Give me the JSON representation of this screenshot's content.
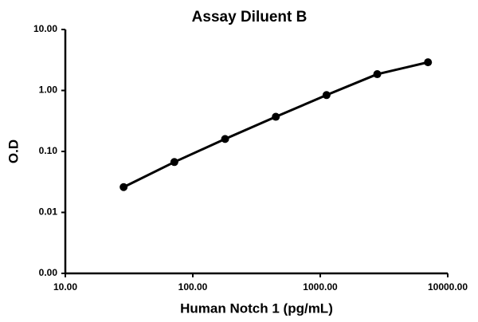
{
  "chart_data": {
    "type": "line",
    "title": "Assay Diluent B",
    "x_label": "Human Notch 1 (pg/mL)",
    "y_label": "O.D",
    "x": [
      28.67,
      71.68,
      179.2,
      448,
      1120,
      2800,
      7000
    ],
    "series": [
      {
        "color": "#000000",
        "values": [
          0.026,
          0.067,
          0.16,
          0.37,
          0.84,
          1.85,
          2.9
        ]
      }
    ],
    "xlog": true,
    "ylog": true,
    "xlim": [
      10,
      10000
    ],
    "xticks": [
      {
        "value": 10,
        "label": "10.00"
      },
      {
        "value": 100,
        "label": "100.00"
      },
      {
        "value": 1000,
        "label": "1000.00"
      },
      {
        "value": 10000,
        "label": "10000.00"
      }
    ],
    "ylim": [
      0.001,
      10
    ],
    "yticks": [
      {
        "value": 0.001,
        "label": "0.00"
      },
      0.01,
      {
        "value": 0.1,
        "label": "0.10"
      },
      {
        "value": 1,
        "label": "1.00"
      },
      {
        "value": 10,
        "label": "10.00"
      }
    ],
    "grid": false
  }
}
